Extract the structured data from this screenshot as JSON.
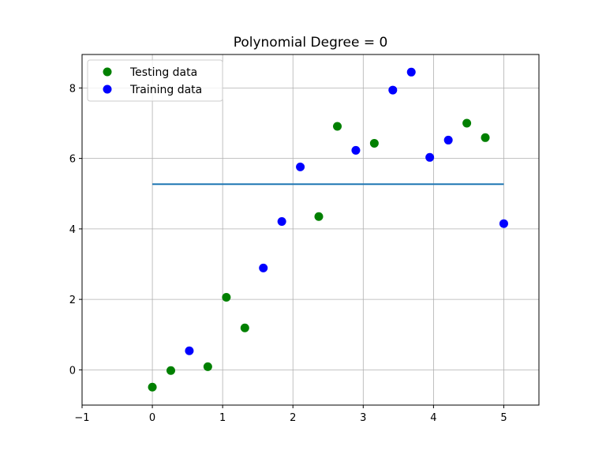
{
  "chart_data": {
    "type": "scatter",
    "title": "Polynomial Degree = 0",
    "xlabel": "",
    "ylabel": "",
    "xlim": [
      -1,
      5.5
    ],
    "ylim": [
      -1,
      8.95
    ],
    "grid": true,
    "legend_placement": "upper-left",
    "x_ticks": [
      -1,
      0,
      1,
      2,
      3,
      4,
      5
    ],
    "y_ticks": [
      0,
      2,
      4,
      6,
      8
    ],
    "x_tick_labels": [
      "−1",
      "0",
      "1",
      "2",
      "3",
      "4",
      "5"
    ],
    "y_tick_labels": [
      "0",
      "2",
      "4",
      "6",
      "8"
    ],
    "series": [
      {
        "name": "Testing data",
        "kind": "scatter",
        "color": "#008000",
        "x": [
          0.0,
          0.263,
          0.789,
          1.053,
          1.316,
          2.368,
          2.632,
          3.158,
          4.474,
          4.737
        ],
        "y": [
          -0.49,
          -0.02,
          0.09,
          2.06,
          1.19,
          4.35,
          6.91,
          6.43,
          7.0,
          6.59
        ]
      },
      {
        "name": "Training data",
        "kind": "scatter",
        "color": "#0000ff",
        "x": [
          0.526,
          1.579,
          1.842,
          2.105,
          2.895,
          3.421,
          3.684,
          3.947,
          4.211,
          5.0
        ],
        "y": [
          0.54,
          2.89,
          4.21,
          5.76,
          6.23,
          7.94,
          8.45,
          6.03,
          6.52,
          4.15
        ]
      },
      {
        "kind": "line",
        "color": "#1f77b4",
        "x": [
          0,
          5
        ],
        "y": [
          5.27,
          5.27
        ]
      }
    ]
  }
}
